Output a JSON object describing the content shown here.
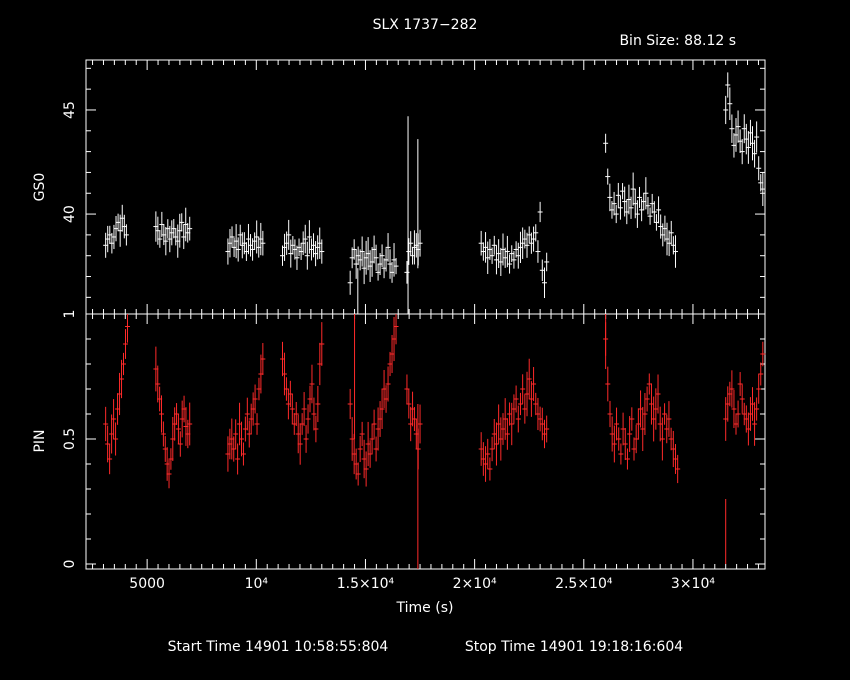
{
  "title": "SLX 1737−282",
  "bin_label": "Bin Size: 88.12 s",
  "footer": {
    "start": "Start Time 14901 10:58:55:804",
    "stop": "Stop Time 14901 19:18:16:604"
  },
  "colors": {
    "gso": "#ffffff",
    "pin": "#ff2a2a",
    "axes": "#ffffff"
  },
  "chart_data": {
    "type": "scatter",
    "xlabel": "Time (s)",
    "xlim": [
      2200,
      33300
    ],
    "xticks": [
      {
        "value": 5000,
        "label": "5000"
      },
      {
        "value": 10000,
        "label": "10⁴"
      },
      {
        "value": 15000,
        "label": "1.5×10⁴"
      },
      {
        "value": 20000,
        "label": "2×10⁴"
      },
      {
        "value": 25000,
        "label": "2.5×10⁴"
      },
      {
        "value": 30000,
        "label": "3×10⁴"
      }
    ],
    "panels": [
      {
        "name": "GS0",
        "ylabel": "GS0",
        "ylim": [
          35.2,
          47.4
        ],
        "yticks": [
          {
            "value": 40,
            "label": "40"
          },
          {
            "value": 45,
            "label": "45"
          }
        ],
        "color": "#ffffff",
        "segments": [
          {
            "t0": 3100,
            "t1": 4050,
            "y": [
              38.5,
              38.8,
              39.0,
              38.6,
              38.9,
              39.3,
              39.6,
              39.2,
              39.8,
              39.4,
              39.0
            ]
          },
          {
            "t0": 5400,
            "t1": 6950,
            "y": [
              39.4,
              39.2,
              38.8,
              39.5,
              39.0,
              38.7,
              39.3,
              38.8,
              39.1,
              39.3,
              38.9,
              38.7,
              39.2,
              39.6,
              38.9,
              39.5,
              39.1,
              39.3
            ]
          },
          {
            "t0": 8700,
            "t1": 10300,
            "y": [
              38.2,
              38.6,
              38.9,
              38.4,
              38.7,
              38.3,
              39.0,
              38.5,
              38.6,
              38.2,
              38.8,
              38.5,
              38.3,
              38.7,
              38.9,
              38.4,
              38.8,
              38.6
            ]
          },
          {
            "t0": 11200,
            "t1": 13000,
            "y": [
              38.0,
              38.4,
              38.6,
              39.0,
              38.1,
              38.5,
              38.3,
              37.9,
              38.4,
              38.2,
              38.6,
              38.8,
              38.0,
              38.9,
              38.3,
              38.5,
              38.1,
              38.4,
              38.6,
              38.2
            ]
          },
          {
            "t0": 14300,
            "t1": 16400,
            "y": [
              36.7,
              37.9,
              38.3,
              37.6,
              38.0,
              37.8,
              38.2,
              37.4,
              37.9,
              38.1,
              37.5,
              37.7,
              38.3,
              37.9,
              37.2,
              37.6,
              38.0,
              37.4,
              37.8,
              38.4,
              37.6,
              37.2,
              37.8,
              37.5
            ]
          },
          {
            "t0": 16900,
            "t1": 17500,
            "y": [
              37.2,
              38.2,
              38.6,
              38.0,
              38.4,
              38.5,
              38.3,
              38.6
            ]
          },
          {
            "t0": 20300,
            "t1": 23300,
            "y": [
              38.6,
              38.2,
              38.4,
              37.9,
              38.3,
              38.0,
              38.5,
              37.8,
              38.1,
              37.7,
              38.3,
              37.9,
              38.2,
              37.6,
              38.1,
              37.8,
              38.3,
              38.0,
              38.4,
              38.6,
              38.8,
              38.5,
              39.0,
              38.6,
              38.8,
              39.1,
              38.2,
              40.1,
              37.3,
              36.7,
              37.7
            ]
          },
          {
            "t0": 26000,
            "t1": 29200,
            "y": [
              43.4,
              41.8,
              40.8,
              40.2,
              40.5,
              40.0,
              40.9,
              40.3,
              41.1,
              40.6,
              40.1,
              40.7,
              40.3,
              41.2,
              40.5,
              40.0,
              40.8,
              40.2,
              40.6,
              41.0,
              40.4,
              39.9,
              40.5,
              40.1,
              39.6,
              40.2,
              39.4,
              39.0,
              39.3,
              38.8,
              38.6,
              39.1,
              38.5,
              38.2
            ]
          },
          {
            "t0": 31500,
            "t1": 33200,
            "y": [
              45.0,
              46.2,
              45.3,
              44.1,
              43.3,
              43.8,
              44.2,
              43.5,
              43.0,
              44.1,
              43.6,
              43.2,
              43.9,
              43.4,
              42.9,
              43.7,
              42.2,
              41.5,
              41.2
            ]
          }
        ],
        "spikes": [
          {
            "t": 14650,
            "lo": 35.2,
            "hi": 37.4
          },
          {
            "t": 16950,
            "lo": 35.2,
            "hi": 44.7
          },
          {
            "t": 17400,
            "lo": 37.4,
            "hi": 43.6
          }
        ]
      },
      {
        "name": "PIN",
        "ylabel": "PIN",
        "ylim": [
          -0.02,
          1.0
        ],
        "yticks": [
          {
            "value": 0,
            "label": "0"
          },
          {
            "value": 0.5,
            "label": "0.5"
          },
          {
            "value": 1,
            "label": "1"
          }
        ],
        "color": "#ff2a2a",
        "segments": [
          {
            "t0": 3100,
            "t1": 4100,
            "y": [
              0.56,
              0.48,
              0.42,
              0.52,
              0.58,
              0.5,
              0.62,
              0.68,
              0.74,
              0.8,
              0.88,
              0.95
            ]
          },
          {
            "t0": 5400,
            "t1": 6950,
            "y": [
              0.78,
              0.72,
              0.66,
              0.6,
              0.52,
              0.46,
              0.4,
              0.36,
              0.42,
              0.5,
              0.56,
              0.6,
              0.54,
              0.48,
              0.58,
              0.62,
              0.55,
              0.52,
              0.56
            ]
          },
          {
            "t0": 8700,
            "t1": 10300,
            "y": [
              0.44,
              0.48,
              0.5,
              0.46,
              0.52,
              0.42,
              0.56,
              0.5,
              0.44,
              0.54,
              0.6,
              0.52,
              0.58,
              0.62,
              0.66,
              0.56,
              0.7,
              0.76,
              0.82
            ]
          },
          {
            "t0": 11200,
            "t1": 13000,
            "y": [
              0.82,
              0.76,
              0.7,
              0.64,
              0.68,
              0.62,
              0.56,
              0.6,
              0.52,
              0.48,
              0.56,
              0.62,
              0.5,
              0.58,
              0.66,
              0.72,
              0.6,
              0.54,
              0.64,
              0.8,
              0.88
            ]
          },
          {
            "t0": 14300,
            "t1": 16400,
            "y": [
              0.64,
              0.5,
              0.44,
              0.4,
              0.36,
              0.46,
              0.52,
              0.42,
              0.38,
              0.48,
              0.44,
              0.5,
              0.56,
              0.46,
              0.54,
              0.58,
              0.62,
              0.7,
              0.66,
              0.72,
              0.8,
              0.84,
              0.9,
              0.95
            ]
          },
          {
            "t0": 16900,
            "t1": 17500,
            "y": [
              0.7,
              0.64,
              0.56,
              0.62,
              0.58,
              0.52,
              0.46,
              0.56
            ]
          },
          {
            "t0": 20300,
            "t1": 23300,
            "y": [
              0.46,
              0.42,
              0.4,
              0.44,
              0.38,
              0.46,
              0.52,
              0.48,
              0.56,
              0.5,
              0.54,
              0.58,
              0.52,
              0.6,
              0.56,
              0.62,
              0.66,
              0.58,
              0.64,
              0.7,
              0.62,
              0.68,
              0.74,
              0.66,
              0.72,
              0.64,
              0.6,
              0.58,
              0.56,
              0.52,
              0.54
            ]
          },
          {
            "t0": 26000,
            "t1": 29300,
            "y": [
              0.9,
              0.72,
              0.6,
              0.52,
              0.48,
              0.56,
              0.5,
              0.44,
              0.54,
              0.48,
              0.42,
              0.52,
              0.58,
              0.46,
              0.5,
              0.56,
              0.62,
              0.54,
              0.6,
              0.66,
              0.72,
              0.64,
              0.58,
              0.62,
              0.68,
              0.56,
              0.5,
              0.6,
              0.54,
              0.58,
              0.5,
              0.46,
              0.42,
              0.38
            ]
          },
          {
            "t0": 31500,
            "t1": 33200,
            "y": [
              0.58,
              0.64,
              0.68,
              0.7,
              0.62,
              0.56,
              0.6,
              0.72,
              0.66,
              0.6,
              0.58,
              0.54,
              0.6,
              0.64,
              0.56,
              0.62,
              0.7,
              0.76,
              0.84
            ]
          }
        ],
        "spikes": [
          {
            "t": 14500,
            "lo": 0.5,
            "hi": 1.0
          },
          {
            "t": 17400,
            "lo": -0.02,
            "hi": 0.64
          },
          {
            "t": 31500,
            "lo": 0.0,
            "hi": 0.26
          },
          {
            "t": 26000,
            "lo": 0.78,
            "hi": 1.0
          }
        ]
      }
    ]
  }
}
